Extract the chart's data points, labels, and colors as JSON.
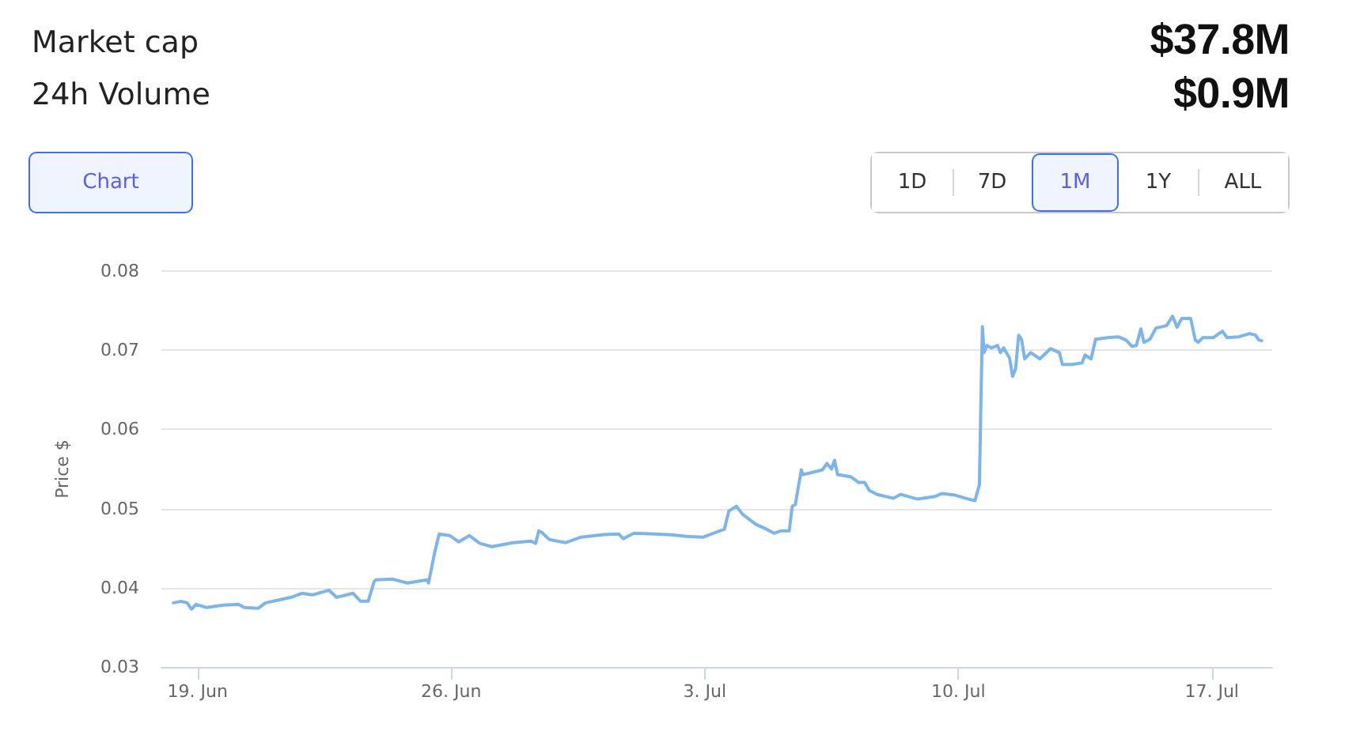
{
  "chart_data": {
    "type": "line",
    "annotations": [
      "Market cap",
      "$37.8M",
      "24h Volume",
      "$0.9M",
      "Chart",
      "1D",
      "7D",
      "1M",
      "1Y",
      "ALL"
    ],
    "ylabel": "Price $",
    "color": "#7cb5ec",
    "marker": "none",
    "line_style": "solid",
    "grid": "y",
    "xlim": [
      "--06-18T00:00",
      "--07-18T16:00"
    ],
    "xticks": [
      {
        "value": "--06-19",
        "label": "19. Jun"
      },
      {
        "value": "--06-26",
        "label": "26. Jun"
      },
      {
        "value": "--07-03",
        "label": "3. Jul"
      },
      {
        "value": "--07-10",
        "label": "10. Jul"
      },
      {
        "value": "--07-17",
        "label": "17. Jul"
      }
    ],
    "ylim": [
      0.03,
      0.08
    ],
    "yticks": [
      0.03,
      0.04,
      0.05,
      0.06,
      0.07,
      0.08
    ],
    "x": [
      "--06-18T08:00",
      "--06-18T13:00",
      "--06-18T17:00",
      "--06-18T20:00",
      "--06-18T23:00",
      "--06-19T06:00",
      "--06-19T17:00",
      "--06-20T03:00",
      "--06-20T07:00",
      "--06-20T16:00",
      "--06-20T21:00",
      "--06-21T07:00",
      "--06-21T14:00",
      "--06-21T21:00",
      "--06-22T04:00",
      "--06-22T15:00",
      "--06-22T20:00",
      "--06-23T07:00",
      "--06-23T12:00",
      "--06-23T17:00",
      "--06-23T21:00",
      "--06-23T22:00",
      "--06-24T09:00",
      "--06-24T19:00",
      "--06-25T08:00",
      "--06-25T09:00",
      "--06-25T13:00",
      "--06-25T16:00",
      "--06-25T23:00",
      "--06-26T05:00",
      "--06-26T12:00",
      "--06-26T19:00",
      "--06-27T03:00",
      "--06-27T17:00",
      "--06-28T05:00",
      "--06-28T08:00",
      "--06-28T10:00",
      "--06-28T12:00",
      "--06-28T17:00",
      "--06-29T04:00",
      "--06-29T14:00",
      "--06-30T04:00",
      "--06-30T15:00",
      "--06-30T18:00",
      "--07-01T01:00",
      "--07-01T15:00",
      "--07-02T02:00",
      "--07-02T12:00",
      "--07-02T23:00",
      "--07-03T06:00",
      "--07-03T13:00",
      "--07-03T16:00",
      "--07-03T21:00",
      "--07-04T01:00",
      "--07-04T10:00",
      "--07-04T17:00",
      "--07-04T22:00",
      "--07-05T03:00",
      "--07-05T08:00",
      "--07-05T10:00",
      "--07-05T12:00",
      "--07-05T16:00",
      "--07-05T17:00",
      "--07-06T00:00",
      "--07-06T06:00",
      "--07-06T09:00",
      "--07-06T12:00",
      "--07-06T14:00",
      "--07-06T16:00",
      "--07-07T01:00",
      "--07-07T06:00",
      "--07-07T10:00",
      "--07-07T13:00",
      "--07-07T18:00",
      "--07-08T05:00",
      "--07-08T10:00",
      "--07-08T21:00",
      "--07-09T08:00",
      "--07-09T13:00",
      "--07-09T22:00",
      "--07-10T05:00",
      "--07-10T11:00",
      "--07-10T14:00",
      "--07-10T15:00",
      "--07-10T16:00",
      "--07-10T17:00",
      "--07-10T19:00",
      "--07-10T22:00",
      "--07-11T02:00",
      "--07-11T04:00",
      "--07-11T06:00",
      "--07-11T10:00",
      "--07-11T12:00",
      "--07-11T14:00",
      "--07-11T16:00",
      "--07-11T18:00",
      "--07-11T20:00",
      "--07-12T00:00",
      "--07-12T06:00",
      "--07-12T13:00",
      "--07-12T19:00",
      "--07-12T21:00",
      "--07-13T03:00",
      "--07-13T10:00",
      "--07-13T12:00",
      "--07-13T16:00",
      "--07-13T19:00",
      "--07-14T03:00",
      "--07-14T10:00",
      "--07-14T15:00",
      "--07-14T19:00",
      "--07-14T22:00",
      "--07-15T01:00",
      "--07-15T03:00",
      "--07-15T07:00",
      "--07-15T11:00",
      "--07-15T18:00",
      "--07-15T22:00",
      "--07-16T01:00",
      "--07-16T04:00",
      "--07-16T10:00",
      "--07-16T13:00",
      "--07-16T15:00",
      "--07-16T18:00",
      "--07-17T01:00",
      "--07-17T07:00",
      "--07-17T10:00",
      "--07-17T18:00",
      "--07-18T01:00",
      "--07-18T05:00",
      "--07-18T07:00",
      "--07-18T09:00"
    ],
    "values": [
      0.0381,
      0.0383,
      0.0381,
      0.0373,
      0.0379,
      0.0375,
      0.0378,
      0.0379,
      0.0375,
      0.0374,
      0.0381,
      0.0385,
      0.0388,
      0.0393,
      0.0391,
      0.0397,
      0.0388,
      0.0393,
      0.0383,
      0.0383,
      0.0408,
      0.041,
      0.0411,
      0.0406,
      0.041,
      0.0406,
      0.0444,
      0.0468,
      0.0466,
      0.0458,
      0.0466,
      0.0456,
      0.0452,
      0.0457,
      0.0459,
      0.0456,
      0.0472,
      0.047,
      0.0461,
      0.0457,
      0.0464,
      0.0467,
      0.0468,
      0.0462,
      0.0469,
      0.0468,
      0.0467,
      0.0465,
      0.0464,
      0.0469,
      0.0474,
      0.0497,
      0.0503,
      0.0493,
      0.048,
      0.0474,
      0.0469,
      0.0472,
      0.0472,
      0.0503,
      0.0505,
      0.0549,
      0.0543,
      0.0546,
      0.0549,
      0.0557,
      0.055,
      0.0561,
      0.0543,
      0.054,
      0.0533,
      0.0533,
      0.0523,
      0.0518,
      0.0513,
      0.0518,
      0.0512,
      0.0515,
      0.0519,
      0.0517,
      0.0513,
      0.051,
      0.053,
      0.0635,
      0.073,
      0.0697,
      0.0706,
      0.0703,
      0.0706,
      0.0697,
      0.0703,
      0.069,
      0.0667,
      0.0677,
      0.0719,
      0.0713,
      0.0689,
      0.0697,
      0.0689,
      0.0702,
      0.0697,
      0.0682,
      0.0682,
      0.0684,
      0.0694,
      0.0689,
      0.0714,
      0.0716,
      0.0717,
      0.0713,
      0.0705,
      0.0706,
      0.0727,
      0.071,
      0.0714,
      0.0728,
      0.0731,
      0.0743,
      0.0729,
      0.074,
      0.074,
      0.0713,
      0.071,
      0.0716,
      0.0716,
      0.0724,
      0.0716,
      0.0717,
      0.0721,
      0.0719,
      0.0713,
      0.0712
    ]
  }
}
